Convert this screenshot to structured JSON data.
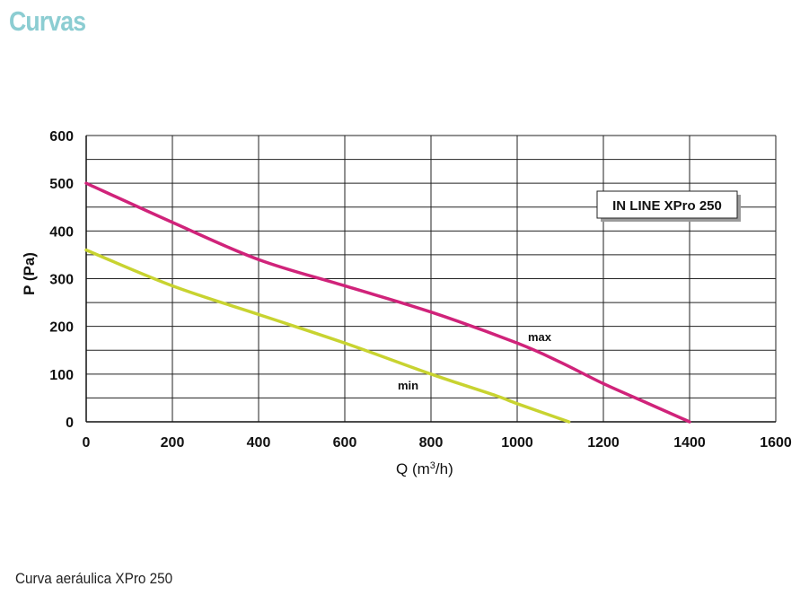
{
  "page": {
    "title": "Curvas",
    "title_color": "#8ccdd2",
    "caption": "Curva aeráulica XPro 250"
  },
  "chart_data": {
    "type": "line",
    "title": "",
    "legend_box": "IN LINE XPro 250",
    "xlabel_main": "Q (m",
    "xlabel_sup": "3",
    "xlabel_end": "/h)",
    "ylabel": "P (Pa)",
    "xlim": [
      0,
      1600
    ],
    "ylim": [
      0,
      600
    ],
    "x_ticks": [
      0,
      200,
      400,
      600,
      800,
      1000,
      1200,
      1400,
      1600
    ],
    "y_ticks": [
      0,
      100,
      200,
      300,
      400,
      500,
      600
    ],
    "grid": true,
    "series": [
      {
        "name": "max",
        "color": "#d0237a",
        "x": [
          0,
          200,
          400,
          600,
          800,
          1000,
          1100,
          1200,
          1300,
          1400
        ],
        "y": [
          500,
          418,
          340,
          285,
          230,
          165,
          125,
          80,
          40,
          0
        ]
      },
      {
        "name": "min",
        "color": "#c8d330",
        "x": [
          0,
          200,
          400,
          600,
          800,
          950,
          1000,
          1120
        ],
        "y": [
          360,
          285,
          225,
          165,
          100,
          55,
          38,
          0
        ]
      }
    ]
  }
}
